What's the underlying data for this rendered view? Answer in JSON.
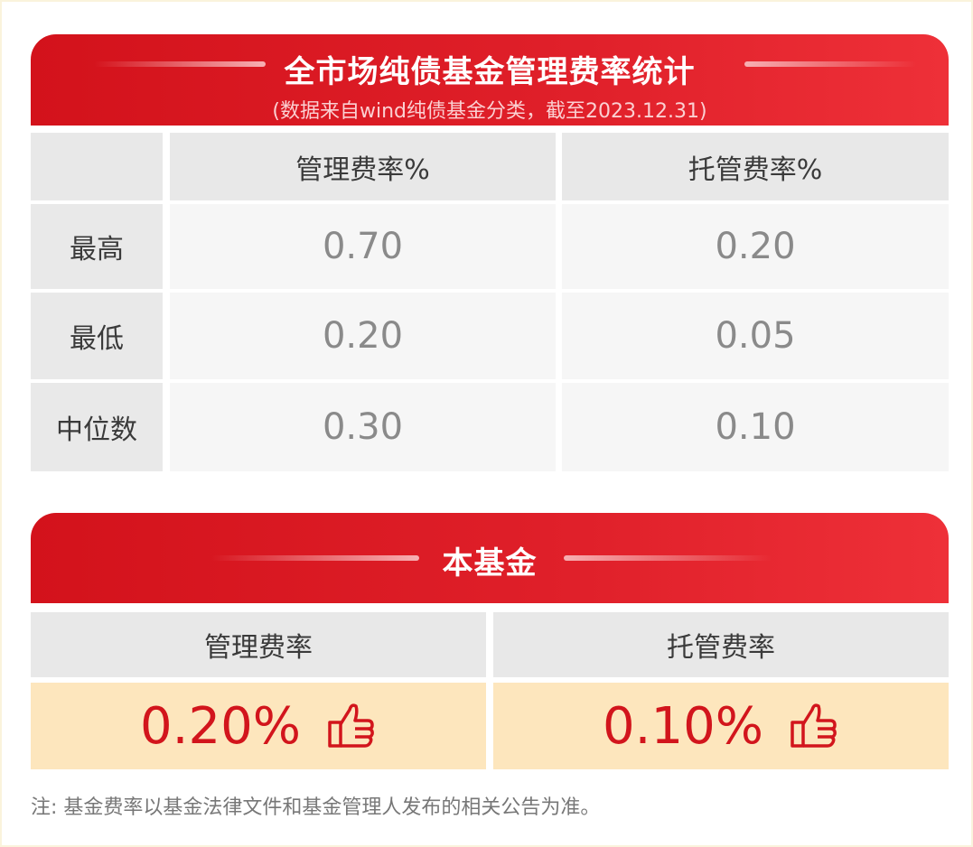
{
  "market": {
    "title": "全市场纯债基金管理费率统计",
    "subtitle": "(数据来自wind纯债基金分类，截至2023.12.31)",
    "columns": [
      "管理费率%",
      "托管费率%"
    ],
    "rows": [
      {
        "label": "最高",
        "mgmt": "0.70",
        "cust": "0.20"
      },
      {
        "label": "最低",
        "mgmt": "0.20",
        "cust": "0.05"
      },
      {
        "label": "中位数",
        "mgmt": "0.30",
        "cust": "0.10"
      }
    ]
  },
  "fund": {
    "title": "本基金",
    "columns": [
      "管理费率",
      "托管费率"
    ],
    "values": [
      "0.20%",
      "0.10%"
    ],
    "icon": "thumbs-up-icon"
  },
  "note": "注: 基金费率以基金法律文件和基金管理人发布的相关公告为准。",
  "colors": {
    "accent": "#d3121b",
    "highlight": "#fde6bd"
  }
}
